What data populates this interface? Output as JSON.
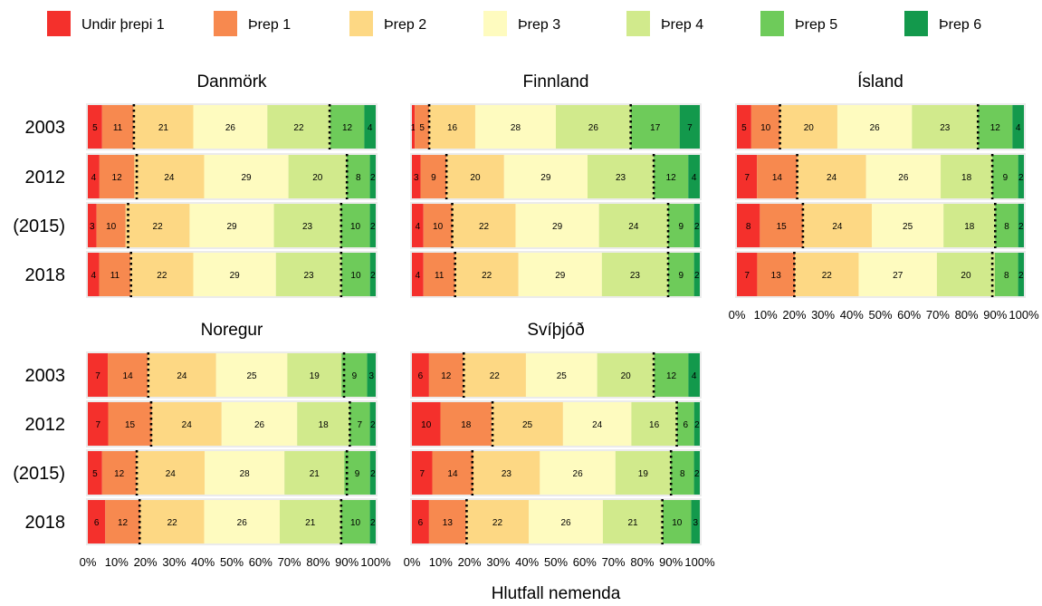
{
  "chart_data": {
    "type": "bar",
    "orientation": "horizontal",
    "stacked": true,
    "percent": true,
    "legend_position": "top",
    "xlabel": "Hlutfall nemenda",
    "x_ticks": [
      "0%",
      "10%",
      "20%",
      "30%",
      "40%",
      "50%",
      "60%",
      "70%",
      "80%",
      "90%",
      "100%"
    ],
    "xlim": [
      0,
      100
    ],
    "legend": [
      {
        "label": "Undir þrepi 1",
        "color": "#f4302c"
      },
      {
        "label": "Þrep 1",
        "color": "#f7894f"
      },
      {
        "label": "Þrep 2",
        "color": "#fdd884"
      },
      {
        "label": "Þrep 3",
        "color": "#fefbbf"
      },
      {
        "label": "Þrep 4",
        "color": "#d1ea8c"
      },
      {
        "label": "Þrep 5",
        "color": "#6ecb5a"
      },
      {
        "label": "Þrep 6",
        "color": "#13994c"
      }
    ],
    "reference_line_note": "dotted",
    "panels": [
      {
        "title": "Danmörk",
        "rows": [
          {
            "year": "2003",
            "values": [
              5,
              11,
              21,
              26,
              22,
              12,
              4
            ],
            "dots": [
              16,
              84
            ]
          },
          {
            "year": "2012",
            "values": [
              4,
              12,
              24,
              29,
              20,
              8,
              2
            ],
            "dots": [
              17,
              90
            ]
          },
          {
            "year": "(2015)",
            "values": [
              3,
              10,
              22,
              29,
              23,
              10,
              2
            ],
            "dots": [
              14,
              88
            ]
          },
          {
            "year": "2018",
            "values": [
              4,
              11,
              22,
              29,
              23,
              10,
              2
            ],
            "dots": [
              15,
              88
            ]
          }
        ]
      },
      {
        "title": "Finnland",
        "rows": [
          {
            "year": "2003",
            "values": [
              1,
              5,
              16,
              28,
              26,
              17,
              7
            ],
            "dots": [
              6,
              76
            ]
          },
          {
            "year": "2012",
            "values": [
              3,
              9,
              20,
              29,
              23,
              12,
              4
            ],
            "dots": [
              12,
              84
            ]
          },
          {
            "year": "(2015)",
            "values": [
              4,
              10,
              22,
              29,
              24,
              9,
              2
            ],
            "dots": [
              14,
              89
            ]
          },
          {
            "year": "2018",
            "values": [
              4,
              11,
              22,
              29,
              23,
              9,
              2
            ],
            "dots": [
              15,
              89
            ]
          }
        ]
      },
      {
        "title": "Ísland",
        "rows": [
          {
            "year": "2003",
            "values": [
              5,
              10,
              20,
              26,
              23,
              12,
              4
            ],
            "dots": [
              15,
              84
            ]
          },
          {
            "year": "2012",
            "values": [
              7,
              14,
              24,
              26,
              18,
              9,
              2
            ],
            "dots": [
              21,
              89
            ]
          },
          {
            "year": "(2015)",
            "values": [
              8,
              15,
              24,
              25,
              18,
              8,
              2
            ],
            "dots": [
              23,
              90
            ]
          },
          {
            "year": "2018",
            "values": [
              7,
              13,
              22,
              27,
              20,
              8,
              2
            ],
            "dots": [
              20,
              89
            ]
          }
        ]
      },
      {
        "title": "Noregur",
        "rows": [
          {
            "year": "2003",
            "values": [
              7,
              14,
              24,
              25,
              19,
              9,
              3
            ],
            "dots": [
              21,
              89
            ]
          },
          {
            "year": "2012",
            "values": [
              7,
              15,
              24,
              26,
              18,
              7,
              2
            ],
            "dots": [
              22,
              91
            ]
          },
          {
            "year": "(2015)",
            "values": [
              5,
              12,
              24,
              28,
              21,
              9,
              2
            ],
            "dots": [
              17,
              90
            ]
          },
          {
            "year": "2018",
            "values": [
              6,
              12,
              22,
              26,
              21,
              10,
              2
            ],
            "dots": [
              18,
              88
            ]
          }
        ]
      },
      {
        "title": "Svíþjóð",
        "rows": [
          {
            "year": "2003",
            "values": [
              6,
              12,
              22,
              25,
              20,
              12,
              4
            ],
            "dots": [
              18,
              84
            ]
          },
          {
            "year": "2012",
            "values": [
              10,
              18,
              25,
              24,
              16,
              6,
              2
            ],
            "dots": [
              28,
              92
            ]
          },
          {
            "year": "(2015)",
            "values": [
              7,
              14,
              23,
              26,
              19,
              8,
              2
            ],
            "dots": [
              21,
              90
            ]
          },
          {
            "year": "2018",
            "values": [
              6,
              13,
              22,
              26,
              21,
              10,
              3
            ],
            "dots": [
              19,
              87
            ]
          }
        ]
      }
    ]
  }
}
